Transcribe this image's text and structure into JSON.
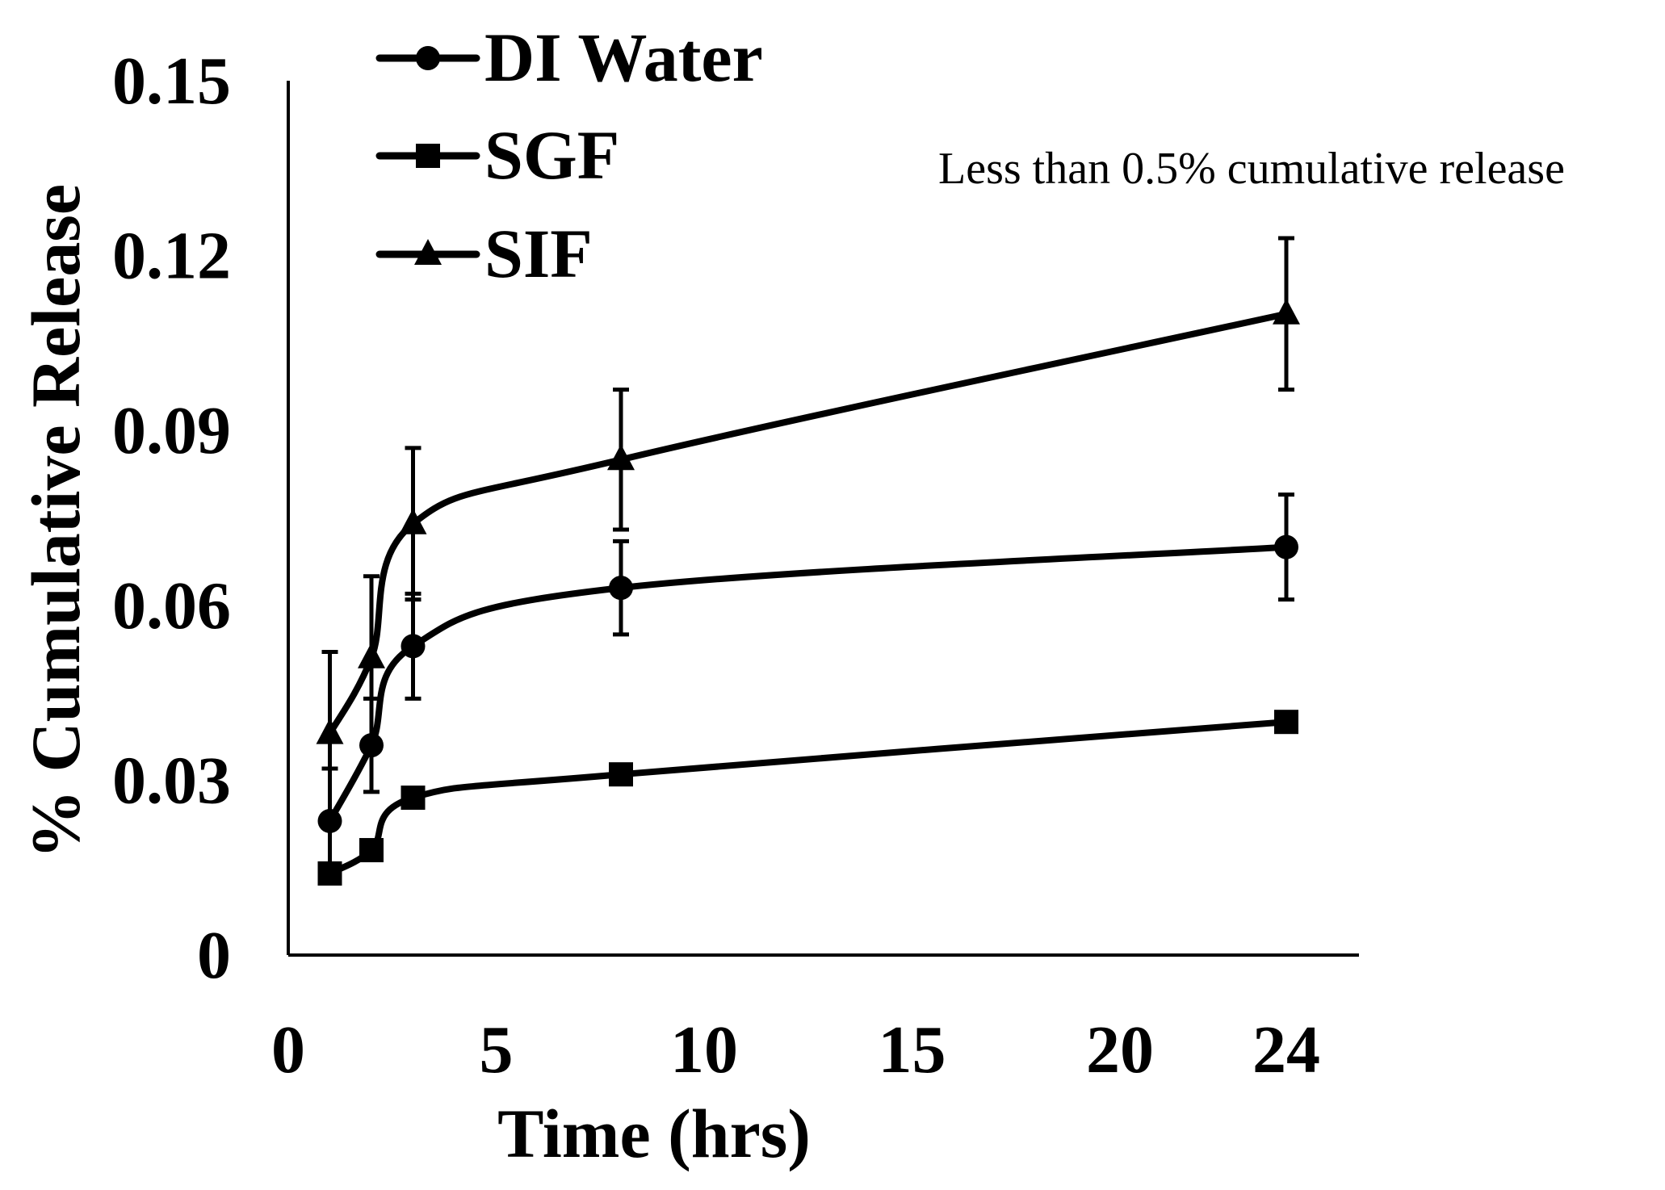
{
  "chart_data": {
    "type": "line",
    "title": "",
    "xlabel": "Time (hrs)",
    "ylabel": "% Cumulative Release",
    "x_ticks": [
      0,
      5,
      10,
      15,
      20,
      24
    ],
    "y_ticks": [
      0,
      0.03,
      0.06,
      0.09,
      0.12,
      0.15
    ],
    "y_tick_labels": [
      "0",
      "0.03",
      "0.06",
      "0.09",
      "0.12",
      "0.15"
    ],
    "x_tick_labels": [
      "0",
      "5",
      "10",
      "15",
      "20",
      "24"
    ],
    "xlim": [
      0,
      24.7
    ],
    "ylim": [
      0,
      0.15
    ],
    "grid": false,
    "legend_position": "top-left",
    "annotation": "Less than 0.5% cumulative release",
    "series": [
      {
        "name": "DI Water",
        "marker": "circle",
        "color": "#000000",
        "x": [
          1,
          2,
          3,
          8,
          24
        ],
        "values": [
          0.023,
          0.036,
          0.053,
          0.063,
          0.07
        ],
        "errors": [
          0.009,
          0.008,
          0.009,
          0.008,
          0.009
        ]
      },
      {
        "name": "SGF",
        "marker": "square",
        "color": "#000000",
        "x": [
          1,
          2,
          3,
          8,
          24
        ],
        "values": [
          0.014,
          0.018,
          0.027,
          0.031,
          0.04
        ],
        "errors": [
          0,
          0,
          0,
          0,
          0
        ]
      },
      {
        "name": "SIF",
        "marker": "triangle",
        "color": "#000000",
        "x": [
          1,
          2,
          3,
          8,
          24
        ],
        "values": [
          0.038,
          0.051,
          0.074,
          0.085,
          0.11
        ],
        "errors": [
          0.014,
          0.014,
          0.013,
          0.012,
          0.013
        ]
      }
    ]
  }
}
